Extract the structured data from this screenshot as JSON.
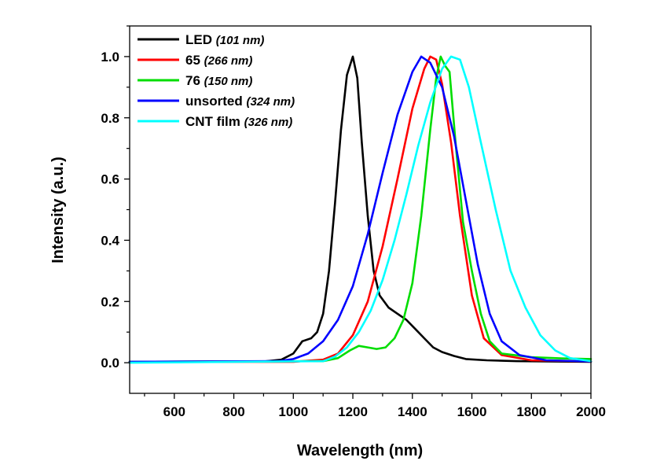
{
  "chart_data": {
    "type": "line",
    "title": "",
    "xlabel": "Wavelength (nm)",
    "ylabel": "Intensity (a.u.)",
    "xlim": [
      450,
      2000
    ],
    "ylim": [
      -0.1,
      1.1
    ],
    "xticks": [
      600,
      800,
      1000,
      1200,
      1400,
      1600,
      1800,
      2000
    ],
    "yticks": [
      0.0,
      0.2,
      0.4,
      0.6,
      0.8,
      1.0
    ],
    "grid": false,
    "legend_position": "top-left",
    "series": [
      {
        "name": "LED",
        "note": "(101 nm)",
        "color": "#000000",
        "points": [
          [
            450,
            0.003
          ],
          [
            900,
            0.004
          ],
          [
            960,
            0.01
          ],
          [
            1000,
            0.03
          ],
          [
            1030,
            0.07
          ],
          [
            1060,
            0.08
          ],
          [
            1080,
            0.1
          ],
          [
            1100,
            0.16
          ],
          [
            1120,
            0.3
          ],
          [
            1140,
            0.52
          ],
          [
            1160,
            0.76
          ],
          [
            1180,
            0.94
          ],
          [
            1200,
            1.0
          ],
          [
            1215,
            0.93
          ],
          [
            1230,
            0.72
          ],
          [
            1250,
            0.48
          ],
          [
            1270,
            0.3
          ],
          [
            1290,
            0.22
          ],
          [
            1320,
            0.18
          ],
          [
            1350,
            0.16
          ],
          [
            1380,
            0.14
          ],
          [
            1410,
            0.11
          ],
          [
            1440,
            0.08
          ],
          [
            1470,
            0.05
          ],
          [
            1500,
            0.035
          ],
          [
            1540,
            0.022
          ],
          [
            1580,
            0.012
          ],
          [
            1650,
            0.008
          ],
          [
            1750,
            0.005
          ],
          [
            2000,
            0.003
          ]
        ]
      },
      {
        "name": "65",
        "note": "(266 nm)",
        "color": "#ff0000",
        "points": [
          [
            450,
            0.003
          ],
          [
            1000,
            0.003
          ],
          [
            1100,
            0.01
          ],
          [
            1150,
            0.03
          ],
          [
            1200,
            0.09
          ],
          [
            1250,
            0.2
          ],
          [
            1300,
            0.38
          ],
          [
            1350,
            0.6
          ],
          [
            1400,
            0.83
          ],
          [
            1440,
            0.96
          ],
          [
            1460,
            1.0
          ],
          [
            1480,
            0.99
          ],
          [
            1500,
            0.91
          ],
          [
            1530,
            0.72
          ],
          [
            1560,
            0.48
          ],
          [
            1600,
            0.22
          ],
          [
            1640,
            0.08
          ],
          [
            1700,
            0.025
          ],
          [
            1800,
            0.008
          ],
          [
            2000,
            0.004
          ]
        ]
      },
      {
        "name": "76",
        "note": "(150 nm)",
        "color": "#00dd00",
        "points": [
          [
            450,
            0.003
          ],
          [
            1100,
            0.005
          ],
          [
            1150,
            0.015
          ],
          [
            1190,
            0.04
          ],
          [
            1220,
            0.055
          ],
          [
            1250,
            0.05
          ],
          [
            1280,
            0.045
          ],
          [
            1310,
            0.05
          ],
          [
            1340,
            0.08
          ],
          [
            1370,
            0.14
          ],
          [
            1400,
            0.26
          ],
          [
            1430,
            0.48
          ],
          [
            1460,
            0.76
          ],
          [
            1480,
            0.93
          ],
          [
            1495,
            1.0
          ],
          [
            1510,
            0.97
          ],
          [
            1525,
            0.95
          ],
          [
            1545,
            0.72
          ],
          [
            1570,
            0.46
          ],
          [
            1600,
            0.3
          ],
          [
            1630,
            0.16
          ],
          [
            1660,
            0.07
          ],
          [
            1700,
            0.03
          ],
          [
            1800,
            0.018
          ],
          [
            1900,
            0.014
          ],
          [
            2000,
            0.012
          ]
        ]
      },
      {
        "name": "unsorted",
        "note": "(324 nm)",
        "color": "#0000ff",
        "points": [
          [
            450,
            0.003
          ],
          [
            950,
            0.005
          ],
          [
            1000,
            0.012
          ],
          [
            1050,
            0.03
          ],
          [
            1100,
            0.07
          ],
          [
            1150,
            0.14
          ],
          [
            1200,
            0.25
          ],
          [
            1250,
            0.42
          ],
          [
            1300,
            0.62
          ],
          [
            1350,
            0.81
          ],
          [
            1400,
            0.95
          ],
          [
            1430,
            1.0
          ],
          [
            1460,
            0.98
          ],
          [
            1500,
            0.9
          ],
          [
            1540,
            0.74
          ],
          [
            1580,
            0.53
          ],
          [
            1620,
            0.32
          ],
          [
            1660,
            0.16
          ],
          [
            1700,
            0.07
          ],
          [
            1760,
            0.025
          ],
          [
            1850,
            0.008
          ],
          [
            2000,
            0.004
          ]
        ]
      },
      {
        "name": "CNT film",
        "note": "(326 nm)",
        "color": "#00ffff",
        "points": [
          [
            450,
            0.0
          ],
          [
            1100,
            0.005
          ],
          [
            1140,
            0.02
          ],
          [
            1180,
            0.05
          ],
          [
            1220,
            0.1
          ],
          [
            1260,
            0.17
          ],
          [
            1300,
            0.27
          ],
          [
            1340,
            0.4
          ],
          [
            1380,
            0.55
          ],
          [
            1420,
            0.71
          ],
          [
            1460,
            0.85
          ],
          [
            1500,
            0.96
          ],
          [
            1530,
            1.0
          ],
          [
            1560,
            0.99
          ],
          [
            1590,
            0.9
          ],
          [
            1630,
            0.72
          ],
          [
            1680,
            0.5
          ],
          [
            1730,
            0.3
          ],
          [
            1780,
            0.18
          ],
          [
            1830,
            0.09
          ],
          [
            1880,
            0.04
          ],
          [
            1930,
            0.015
          ],
          [
            2000,
            0.005
          ]
        ]
      }
    ]
  }
}
